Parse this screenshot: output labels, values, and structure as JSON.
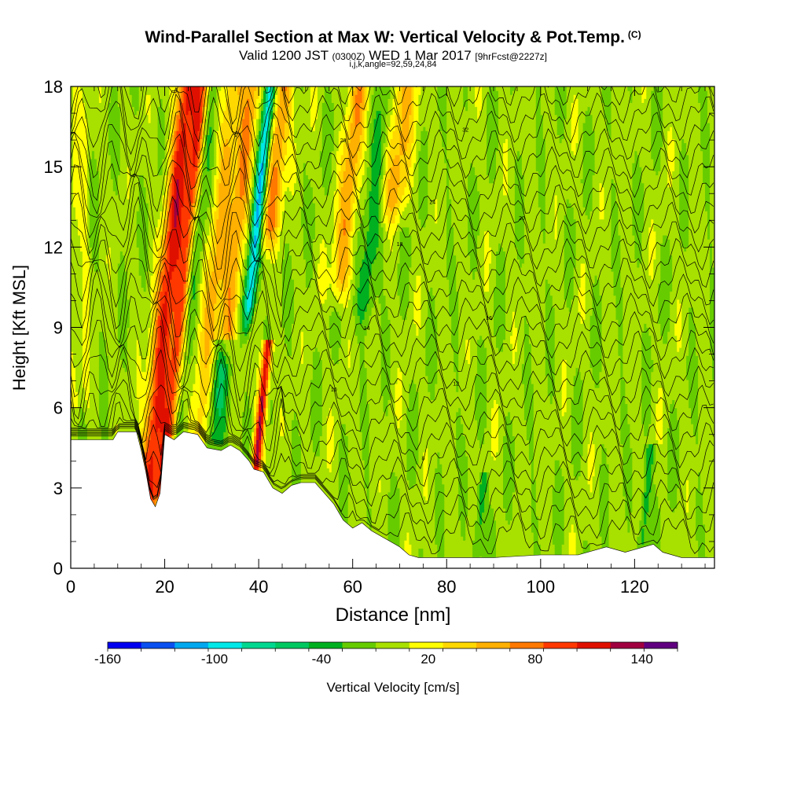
{
  "header": {
    "title": "Wind-Parallel Section at Max W: Vertical Velocity & Pot.Temp.",
    "copyright": "(C)",
    "valid_prefix": "Valid 1200 JST",
    "valid_zulu": "(0300Z)",
    "valid_date": "WED 1 Mar 2017",
    "valid_fcst": "[9hrFcst@2227z]",
    "indices": "i,j,k,angle=92,59,24,84"
  },
  "chart_data": {
    "type": "heatmap",
    "xlabel": "Distance [nm]",
    "ylabel": "Height [Kft MSL]",
    "xlim": [
      0,
      137
    ],
    "ylim": [
      0,
      18
    ],
    "xticks": [
      0,
      20,
      40,
      60,
      80,
      100,
      120
    ],
    "yticks": [
      0,
      3,
      6,
      9,
      12,
      15,
      18
    ],
    "colorbar": {
      "label": "Vertical Velocity [cm/s]",
      "tick_values": [
        -160,
        -100,
        -40,
        20,
        80,
        140
      ],
      "tick_labels": [
        "-160",
        "-100",
        "-40",
        "20",
        "80",
        "140"
      ],
      "levels": [
        -160,
        -140,
        -120,
        -100,
        -80,
        -60,
        -40,
        -20,
        0,
        20,
        40,
        60,
        80,
        100,
        120,
        140,
        160
      ],
      "colors": [
        "#0000f0",
        "#0a50f0",
        "#00a8f0",
        "#00e8e8",
        "#00d890",
        "#00c860",
        "#00b020",
        "#66cc00",
        "#a8e000",
        "#ffff00",
        "#ffd800",
        "#ffb000",
        "#ff7800",
        "#ff3800",
        "#e01000",
        "#a00040",
        "#600080"
      ]
    },
    "terrain_kft": [
      [
        0,
        4.8
      ],
      [
        9,
        4.8
      ],
      [
        10,
        5.1
      ],
      [
        14,
        5.1
      ],
      [
        15,
        4.4
      ],
      [
        16,
        3.6
      ],
      [
        17,
        2.6
      ],
      [
        18,
        2.3
      ],
      [
        19,
        2.8
      ],
      [
        20,
        5.0
      ],
      [
        22,
        4.8
      ],
      [
        24,
        5.1
      ],
      [
        27,
        5.0
      ],
      [
        29,
        4.5
      ],
      [
        32,
        4.4
      ],
      [
        34,
        4.6
      ],
      [
        36,
        4.4
      ],
      [
        38,
        4.0
      ],
      [
        39,
        3.7
      ],
      [
        41,
        3.6
      ],
      [
        43,
        3.0
      ],
      [
        45,
        2.8
      ],
      [
        47,
        3.1
      ],
      [
        49,
        3.2
      ],
      [
        52,
        3.2
      ],
      [
        54,
        2.8
      ],
      [
        56,
        2.4
      ],
      [
        58,
        1.8
      ],
      [
        60,
        1.5
      ],
      [
        62,
        1.7
      ],
      [
        64,
        1.4
      ],
      [
        66,
        1.2
      ],
      [
        68,
        1.0
      ],
      [
        70,
        0.8
      ],
      [
        72,
        0.5
      ],
      [
        74,
        0.4
      ],
      [
        90,
        0.4
      ],
      [
        100,
        0.5
      ],
      [
        108,
        0.5
      ],
      [
        114,
        0.8
      ],
      [
        118,
        0.6
      ],
      [
        124,
        0.9
      ],
      [
        126,
        0.6
      ],
      [
        130,
        0.4
      ],
      [
        137,
        0.4
      ]
    ],
    "vertical_velocity_features": [
      {
        "x": 16,
        "w": 2.2,
        "ybot": 2,
        "ytop": 18,
        "peak": 120
      },
      {
        "x": 19.5,
        "w": 1.8,
        "ybot": 2,
        "ytop": 18,
        "peak": 110
      },
      {
        "x": 22,
        "w": 1.5,
        "ybot": 4,
        "ytop": 18,
        "peak": -60
      },
      {
        "x": 27,
        "w": 2.2,
        "ybot": 4,
        "ytop": 18,
        "peak": 60
      },
      {
        "x": 33,
        "w": 1.8,
        "ybot": 8,
        "ytop": 18,
        "peak": 70
      },
      {
        "x": 37.5,
        "w": 1.2,
        "ybot": 9,
        "ytop": 18,
        "peak": -110
      },
      {
        "x": 39,
        "w": 1.0,
        "ybot": 3,
        "ytop": 8,
        "peak": 140
      },
      {
        "x": 42,
        "w": 2.0,
        "ybot": 12,
        "ytop": 18,
        "peak": 80
      },
      {
        "x": 30,
        "w": 2.5,
        "ybot": 4,
        "ytop": 8,
        "peak": -50
      },
      {
        "x": 57,
        "w": 2.0,
        "ybot": 10,
        "ytop": 18,
        "peak": 70
      },
      {
        "x": 62,
        "w": 2.0,
        "ybot": 9,
        "ytop": 18,
        "peak": -40
      },
      {
        "x": 68,
        "w": 3.0,
        "ybot": 13,
        "ytop": 18,
        "peak": 60
      },
      {
        "x": 86,
        "w": 1.0,
        "ybot": 0,
        "ytop": 3,
        "peak": -40
      },
      {
        "x": 121,
        "w": 1.0,
        "ybot": 0,
        "ytop": 4,
        "peak": -40
      }
    ],
    "isentrope_labels": [
      "48",
      "44",
      "40",
      "36",
      "32",
      "28",
      "24",
      "20",
      "18",
      "16",
      "14",
      "12",
      "10",
      "8"
    ]
  }
}
